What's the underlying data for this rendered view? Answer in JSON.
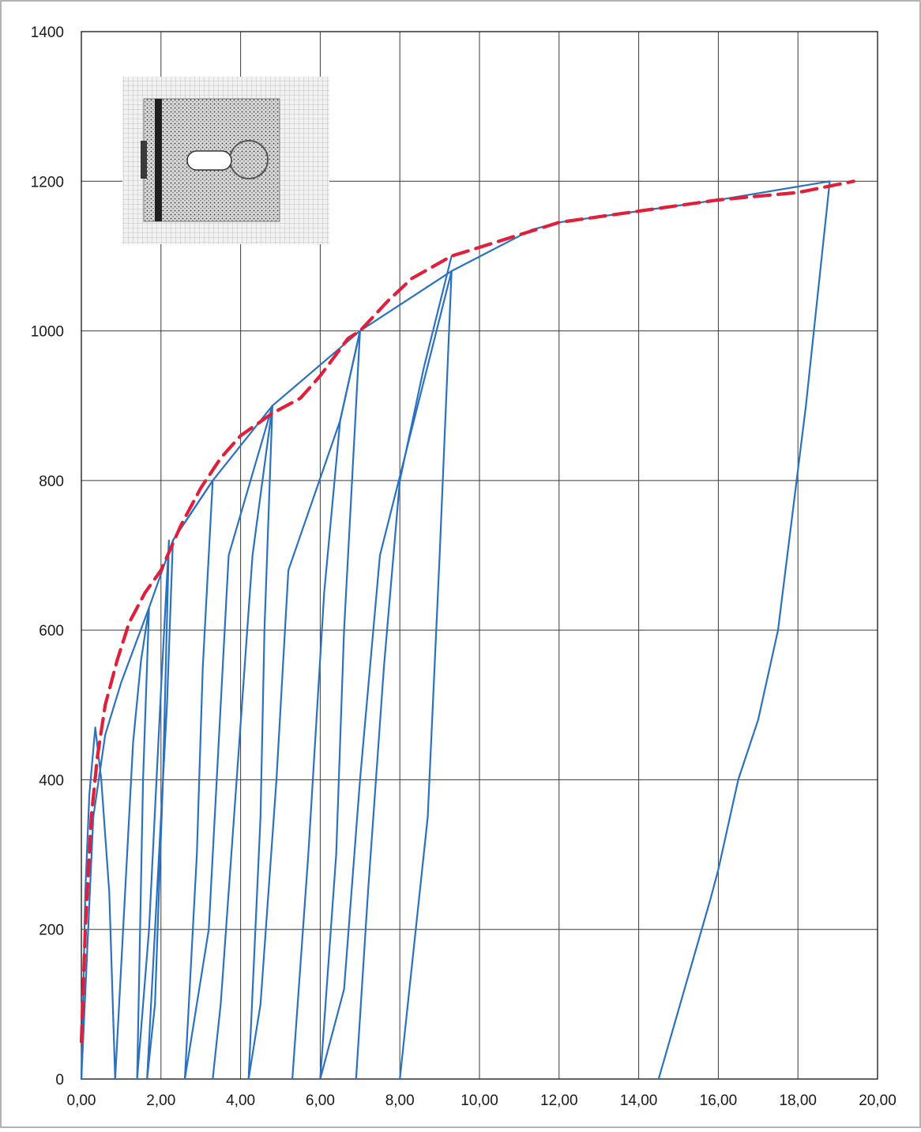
{
  "chart_data": {
    "type": "line",
    "title": "",
    "xlabel": "",
    "ylabel": "",
    "xlim": [
      0,
      20
    ],
    "ylim": [
      0,
      1400
    ],
    "grid": true,
    "x_tick_labels": [
      "0,00",
      "2,00",
      "4,00",
      "6,00",
      "8,00",
      "10,00",
      "12,00",
      "14,00",
      "16,00",
      "18,00",
      "20,00"
    ],
    "y_tick_labels": [
      "0",
      "200",
      "400",
      "600",
      "800",
      "1000",
      "1200",
      "1400"
    ],
    "x_tick_values": [
      0,
      2,
      4,
      6,
      8,
      10,
      12,
      14,
      16,
      18,
      20
    ],
    "y_tick_values": [
      0,
      200,
      400,
      600,
      800,
      1000,
      1200,
      1400
    ],
    "inset": {
      "type": "image",
      "description_icon": "specimen-mesh-icon"
    },
    "series": [
      {
        "style": "solid",
        "color": "#2a72c0",
        "points": [
          [
            0,
            0
          ],
          [
            0.05,
            120
          ],
          [
            0.1,
            250
          ],
          [
            0.2,
            380
          ],
          [
            0.35,
            470
          ],
          [
            0.5,
            400
          ],
          [
            0.7,
            250
          ],
          [
            0.85,
            0
          ],
          [
            1.1,
            250
          ],
          [
            1.3,
            450
          ],
          [
            1.5,
            560
          ],
          [
            1.7,
            630
          ],
          [
            1.55,
            400
          ],
          [
            1.4,
            0
          ],
          [
            1.7,
            200
          ],
          [
            2.0,
            520
          ],
          [
            2.2,
            720
          ],
          [
            2.05,
            400
          ],
          [
            1.85,
            100
          ],
          [
            1.65,
            0
          ],
          [
            2.15,
            500
          ],
          [
            2.3,
            720
          ],
          [
            3.3,
            800
          ],
          [
            3.05,
            550
          ],
          [
            2.9,
            300
          ],
          [
            2.6,
            0
          ],
          [
            3.2,
            200
          ],
          [
            3.5,
            500
          ],
          [
            3.7,
            700
          ],
          [
            4.8,
            900
          ],
          [
            4.6,
            600
          ],
          [
            4.5,
            350
          ],
          [
            4.2,
            0
          ],
          [
            4.5,
            100
          ],
          [
            4.9,
            400
          ],
          [
            5.2,
            680
          ],
          [
            6.5,
            880
          ],
          [
            7.0,
            1000
          ],
          [
            6.6,
            600
          ],
          [
            6.4,
            300
          ],
          [
            6.0,
            0
          ],
          [
            6.6,
            120
          ],
          [
            7.0,
            400
          ],
          [
            7.5,
            700
          ],
          [
            9.3,
            1080
          ],
          [
            9.0,
            700
          ],
          [
            8.7,
            350
          ],
          [
            8.0,
            0
          ]
        ]
      },
      {
        "style": "solid",
        "color": "#2a72c0",
        "points": [
          [
            0,
            0
          ],
          [
            0.3,
            350
          ],
          [
            0.6,
            460
          ],
          [
            1.0,
            530
          ],
          [
            1.7,
            630
          ],
          [
            2.3,
            720
          ],
          [
            3.3,
            800
          ],
          [
            4.8,
            900
          ],
          [
            7.0,
            1000
          ],
          [
            9.3,
            1080
          ],
          [
            11.3,
            1135
          ],
          [
            12.0,
            1145
          ],
          [
            16.0,
            1175
          ],
          [
            18.8,
            1200
          ],
          [
            18.2,
            900
          ],
          [
            17.5,
            600
          ],
          [
            17.0,
            480
          ],
          [
            16.5,
            400
          ],
          [
            16.0,
            280
          ],
          [
            15.8,
            240
          ],
          [
            14.5,
            0
          ]
        ]
      },
      {
        "style": "solid",
        "color": "#2a72c0",
        "points": [
          [
            4.8,
            900
          ],
          [
            4.3,
            700
          ],
          [
            3.9,
            400
          ],
          [
            3.5,
            100
          ],
          [
            3.3,
            0
          ]
        ]
      },
      {
        "style": "solid",
        "color": "#2a72c0",
        "points": [
          [
            7.0,
            1000
          ],
          [
            6.5,
            880
          ],
          [
            6.1,
            650
          ],
          [
            5.7,
            300
          ],
          [
            5.3,
            0
          ]
        ]
      },
      {
        "style": "solid",
        "color": "#2a72c0",
        "points": [
          [
            9.3,
            1100
          ],
          [
            8.6,
            950
          ],
          [
            8.0,
            800
          ],
          [
            7.6,
            550
          ],
          [
            7.2,
            250
          ],
          [
            6.9,
            0
          ]
        ]
      },
      {
        "style": "dashed",
        "color": "#e0203a",
        "points": [
          [
            0.0,
            50
          ],
          [
            0.1,
            200
          ],
          [
            0.25,
            350
          ],
          [
            0.4,
            430
          ],
          [
            0.6,
            500
          ],
          [
            0.9,
            560
          ],
          [
            1.2,
            610
          ],
          [
            1.6,
            650
          ],
          [
            2.0,
            680
          ],
          [
            2.5,
            740
          ],
          [
            3.0,
            790
          ],
          [
            3.5,
            830
          ],
          [
            4.0,
            860
          ],
          [
            4.8,
            890
          ],
          [
            5.5,
            910
          ],
          [
            6.0,
            940
          ],
          [
            6.7,
            990
          ],
          [
            7.0,
            1000
          ],
          [
            7.7,
            1040
          ],
          [
            8.3,
            1070
          ],
          [
            9.3,
            1100
          ],
          [
            10.5,
            1120
          ],
          [
            12.0,
            1145
          ],
          [
            14.0,
            1160
          ],
          [
            16.0,
            1175
          ],
          [
            18.0,
            1185
          ],
          [
            19.4,
            1200
          ]
        ]
      }
    ]
  }
}
